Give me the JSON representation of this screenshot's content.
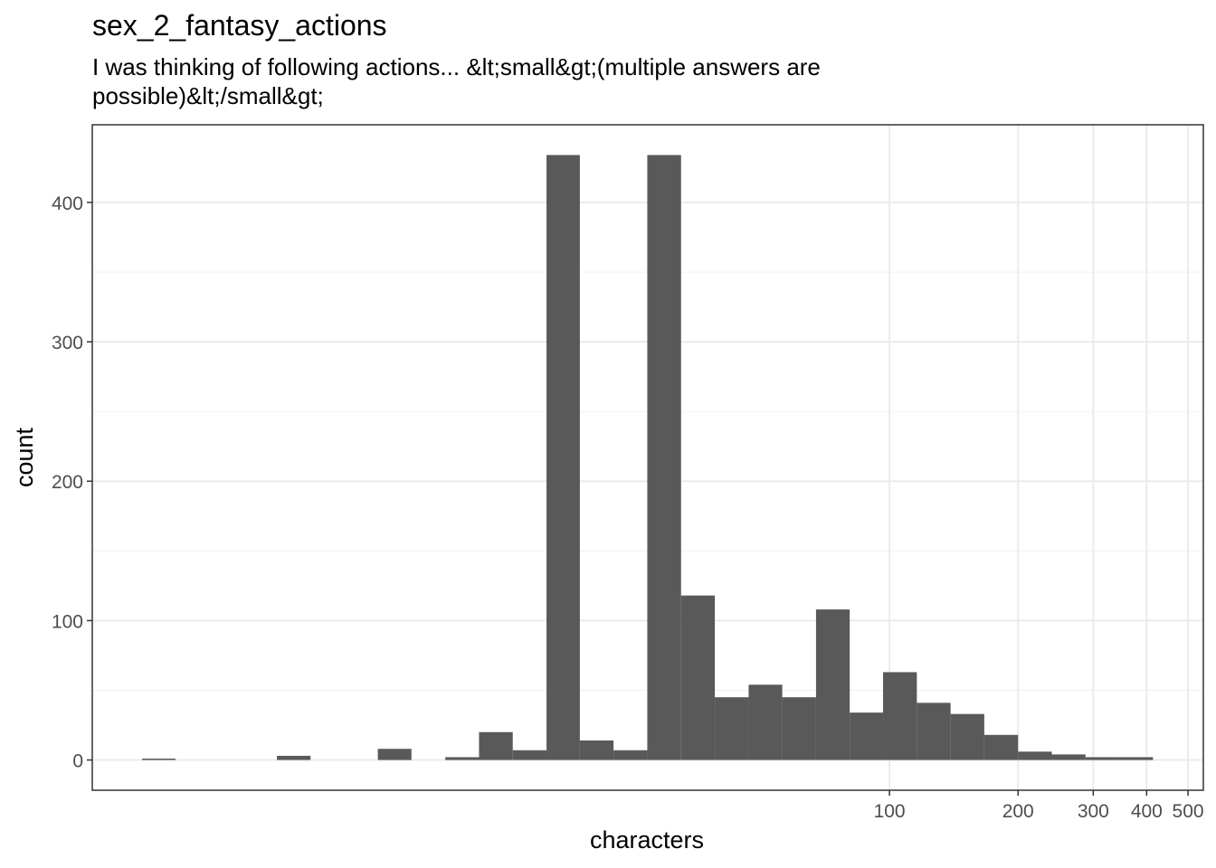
{
  "chart_data": {
    "type": "histogram",
    "title": "sex_2_fantasy_actions",
    "subtitle": "I was thinking of following actions... &lt;small&gt;(multiple answers are possible)&lt;/small&gt;",
    "x_label": "characters",
    "y_label": "count",
    "log_x": true,
    "grid": true,
    "color": "#595959",
    "bins": [
      1.78,
      2.13,
      2.56,
      3.07,
      3.68,
      4.41,
      5.28,
      6.34,
      7.6,
      9.12,
      10.94,
      13.12,
      15.74,
      18.84,
      22.59,
      27.1,
      32.51,
      39.0,
      46.8,
      56.1,
      67.3,
      80.7,
      96.6,
      115.9,
      139.0,
      166.7,
      200,
      239.9,
      287.7,
      345.1,
      414.0
    ],
    "values": [
      1,
      0,
      0,
      0,
      3,
      0,
      0,
      8,
      0,
      2,
      20,
      7,
      434,
      14,
      7,
      434,
      118,
      45,
      54,
      45,
      108,
      34,
      63,
      41,
      33,
      18,
      6,
      4,
      2,
      2
    ],
    "xlim": [
      1.36,
      543
    ],
    "xticks": [
      100,
      200,
      300,
      400,
      500
    ],
    "ylim": [
      -21.7,
      455.7
    ],
    "yticks": [
      0,
      100,
      200,
      300,
      400
    ]
  }
}
